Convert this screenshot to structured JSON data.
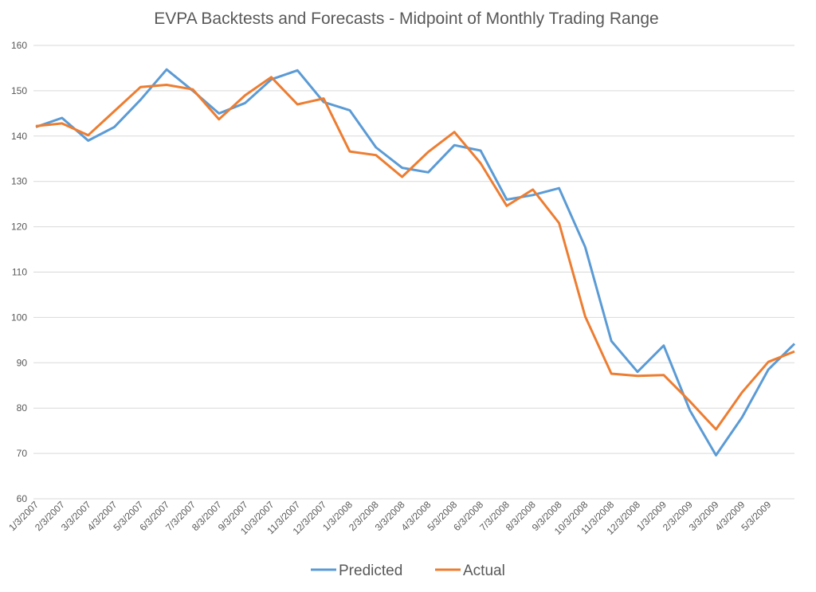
{
  "chart_data": {
    "type": "line",
    "title": "EVPA Backtests and Forecasts - Midpoint of Monthly Trading Range",
    "categories": [
      "1/3/2007",
      "2/3/2007",
      "3/3/2007",
      "4/3/2007",
      "5/3/2007",
      "6/3/2007",
      "7/3/2007",
      "8/3/2007",
      "9/3/2007",
      "10/3/2007",
      "11/3/2007",
      "12/3/2007",
      "1/3/2008",
      "2/3/2008",
      "3/3/2008",
      "4/3/2008",
      "5/3/2008",
      "6/3/2008",
      "7/3/2008",
      "8/3/2008",
      "9/3/2008",
      "10/3/2008",
      "11/3/2008",
      "12/3/2008",
      "1/3/2009",
      "2/3/2009",
      "3/3/2009",
      "4/3/2009",
      "5/3/2009",
      null
    ],
    "series": [
      {
        "name": "Predicted",
        "color": "#5b9bd5",
        "values": [
          142,
          144,
          139,
          142,
          148,
          154.7,
          150,
          145,
          147.3,
          152.5,
          154.5,
          147.5,
          145.7,
          137.5,
          133,
          132,
          138,
          136.8,
          126,
          127,
          128.5,
          115.5,
          94.8,
          88,
          93.8,
          79.5,
          69.6,
          78,
          88.5,
          94.2
        ]
      },
      {
        "name": "Actual",
        "color": "#ed7d31",
        "values": [
          142.2,
          142.8,
          140.2,
          145.5,
          150.8,
          151.3,
          150.3,
          143.7,
          149,
          153,
          147,
          148.3,
          136.6,
          135.8,
          131,
          136.5,
          140.9,
          134,
          124.6,
          128.2,
          120.8,
          100.2,
          87.6,
          87.1,
          87.3,
          81.5,
          75.3,
          83.5,
          90.2,
          92.5
        ]
      }
    ],
    "ylim": [
      60,
      160
    ],
    "yticks": [
      60,
      70,
      80,
      90,
      100,
      110,
      120,
      130,
      140,
      150,
      160
    ],
    "grid": true,
    "legend": "bottom"
  }
}
